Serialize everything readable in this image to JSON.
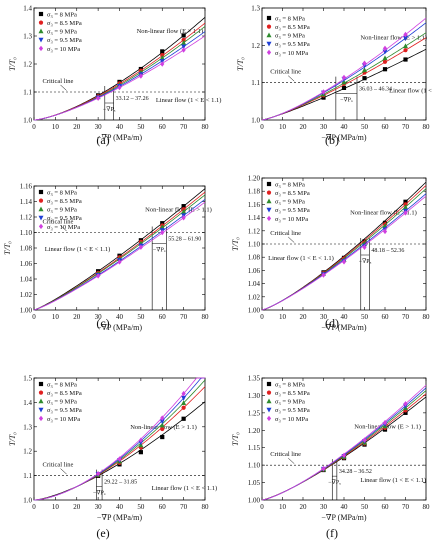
{
  "figure": {
    "captions": [
      "(a)",
      "(b)",
      "(c)",
      "(d)",
      "(e)",
      "(f)"
    ]
  },
  "chart_data": [
    {
      "type": "scatter",
      "panel": "(a)",
      "xlabel": "−∇P (MPa/m)",
      "ylabel": "T/T₀",
      "xlim": [
        0,
        80
      ],
      "ylim": [
        1.0,
        1.4
      ],
      "xticks": [
        0,
        10,
        20,
        30,
        40,
        50,
        60,
        70,
        80
      ],
      "yticks": [
        1.0,
        1.1,
        1.2,
        1.3,
        1.4
      ],
      "ytick_labels": [
        "1.0",
        "1.1",
        "1.2",
        "1.3",
        "1.4"
      ],
      "critical_value": 1.1,
      "critical_label": "Critical line",
      "critical_range": [
        33.12,
        37.26
      ],
      "range_label": "33.12 – 37.26",
      "grad_label": "−∇Pₓ",
      "regions": [
        {
          "text": "Non-linear flow (E > 1.1)",
          "x": 48,
          "y": 1.31
        },
        {
          "text": "Linear flow (1 < E < 1.1)",
          "x": 57,
          "y": 1.065
        }
      ],
      "x": [
        30,
        40,
        50,
        60,
        70
      ],
      "series": [
        {
          "name": "σ₃ = 8 MPa",
          "color": "#000000",
          "marker": "square",
          "values": [
            1.088,
            1.136,
            1.182,
            1.245,
            1.302
          ]
        },
        {
          "name": "σ₃ = 8.5 MPa",
          "color": "#e02020",
          "marker": "circle",
          "values": [
            1.085,
            1.131,
            1.176,
            1.232,
            1.286
          ]
        },
        {
          "name": "σ₃ = 9 MPa",
          "color": "#2e8b2e",
          "marker": "triangle-up",
          "values": [
            1.082,
            1.126,
            1.17,
            1.222,
            1.276
          ]
        },
        {
          "name": "σ₃ = 9.5 MPa",
          "color": "#1f3fd6",
          "marker": "triangle-down",
          "values": [
            1.08,
            1.121,
            1.163,
            1.21,
            1.262
          ]
        },
        {
          "name": "σ₃ = 10 MPa",
          "color": "#d040e0",
          "marker": "diamond",
          "values": [
            1.078,
            1.116,
            1.157,
            1.2,
            1.25
          ]
        }
      ]
    },
    {
      "type": "scatter",
      "panel": "(b)",
      "xlabel": "−∇P (MPa/m)",
      "ylabel": "T/T₀",
      "xlim": [
        0,
        80
      ],
      "ylim": [
        1.0,
        1.3
      ],
      "xticks": [
        0,
        10,
        20,
        30,
        40,
        50,
        60,
        70,
        80
      ],
      "yticks": [
        1.0,
        1.1,
        1.2,
        1.3
      ],
      "ytick_labels": [
        "1.0",
        "1.1",
        "1.2",
        "1.3"
      ],
      "critical_value": 1.1,
      "critical_label": "Critical line",
      "critical_range": [
        36.03,
        46.34
      ],
      "range_label": "36.03 – 46.34",
      "grad_label": "−∇Pₓ",
      "regions": [
        {
          "text": "Non-linear flow (E > 1.1)",
          "x": 48,
          "y": 1.215
        },
        {
          "text": "Linear flow (1 < E < 1.1)",
          "x": 62,
          "y": 1.073
        }
      ],
      "x": [
        30,
        40,
        50,
        60,
        70
      ],
      "series": [
        {
          "name": "σ₃ = 8 MPa",
          "color": "#000000",
          "marker": "square",
          "values": [
            1.06,
            1.086,
            1.112,
            1.136,
            1.162
          ]
        },
        {
          "name": "σ₃ = 8.5 MPa",
          "color": "#e02020",
          "marker": "circle",
          "values": [
            1.066,
            1.097,
            1.127,
            1.156,
            1.187
          ]
        },
        {
          "name": "σ₃ = 9 MPa",
          "color": "#2e8b2e",
          "marker": "triangle-up",
          "values": [
            1.069,
            1.101,
            1.134,
            1.166,
            1.198
          ]
        },
        {
          "name": "σ₃ = 9.5 MPa",
          "color": "#1f3fd6",
          "marker": "triangle-down",
          "values": [
            1.073,
            1.11,
            1.146,
            1.183,
            1.219
          ]
        },
        {
          "name": "σ₃ = 10 MPa",
          "color": "#d040e0",
          "marker": "diamond",
          "values": [
            1.075,
            1.114,
            1.152,
            1.192,
            1.229
          ]
        }
      ]
    },
    {
      "type": "scatter",
      "panel": "(c)",
      "xlabel": "−∇P (MPa/m)",
      "ylabel": "T/T₀",
      "xlim": [
        0,
        80
      ],
      "ylim": [
        1.0,
        1.16
      ],
      "xticks": [
        0,
        10,
        20,
        30,
        40,
        50,
        60,
        70,
        80
      ],
      "yticks": [
        1.0,
        1.02,
        1.04,
        1.06,
        1.08,
        1.1,
        1.12,
        1.14,
        1.16
      ],
      "ytick_labels": [
        "1.00",
        "1.02",
        "1.04",
        "1.06",
        "1.08",
        "1.10",
        "1.12",
        "1.14",
        "1.16"
      ],
      "critical_value": 1.1,
      "critical_label": "Critical line",
      "critical_range": [
        55.28,
        61.9
      ],
      "range_label": "55.28 – 61.90",
      "grad_label": "−∇Pₓ",
      "regions": [
        {
          "text": "Non-linear flow (E > 1.1)",
          "x": 52,
          "y": 1.127
        },
        {
          "text": "Linear flow (1 < E < 1.1)",
          "x": 5,
          "y": 1.076
        }
      ],
      "x": [
        30,
        40,
        50,
        60,
        70
      ],
      "series": [
        {
          "name": "σ₃ = 8 MPa",
          "color": "#000000",
          "marker": "square",
          "values": [
            1.05,
            1.07,
            1.09,
            1.112,
            1.134
          ]
        },
        {
          "name": "σ₃ = 8.5 MPa",
          "color": "#e02020",
          "marker": "circle",
          "values": [
            1.048,
            1.068,
            1.088,
            1.109,
            1.13
          ]
        },
        {
          "name": "σ₃ = 9 MPa",
          "color": "#2e8b2e",
          "marker": "triangle-up",
          "values": [
            1.047,
            1.066,
            1.086,
            1.107,
            1.127
          ]
        },
        {
          "name": "σ₃ = 9.5 MPa",
          "color": "#1f3fd6",
          "marker": "triangle-down",
          "values": [
            1.045,
            1.064,
            1.083,
            1.103,
            1.122
          ]
        },
        {
          "name": "σ₃ = 10 MPa",
          "color": "#d040e0",
          "marker": "diamond",
          "values": [
            1.044,
            1.062,
            1.081,
            1.1,
            1.119
          ]
        }
      ]
    },
    {
      "type": "scatter",
      "panel": "(d)",
      "xlabel": "−∇P (MPa/m)",
      "ylabel": "T/T₀",
      "xlim": [
        0,
        80
      ],
      "ylim": [
        1.0,
        1.2
      ],
      "xticks": [
        0,
        10,
        20,
        30,
        40,
        50,
        60,
        70,
        80
      ],
      "yticks": [
        1.0,
        1.02,
        1.04,
        1.06,
        1.08,
        1.1,
        1.12,
        1.14,
        1.16,
        1.18,
        1.2
      ],
      "ytick_labels": [
        "1.00",
        "1.02",
        "1.04",
        "1.06",
        "1.08",
        "1.10",
        "1.12",
        "1.14",
        "1.16",
        "1.18",
        "1.20"
      ],
      "critical_value": 1.1,
      "critical_label": "Critical line",
      "critical_range": [
        48.18,
        52.36
      ],
      "range_label": "48.18 – 52.36",
      "grad_label": "−∇Pₓ",
      "regions": [
        {
          "text": "Non-linear flow (E > 1.1)",
          "x": 43,
          "y": 1.145
        },
        {
          "text": "Linear flow (1 < E < 1.1)",
          "x": 3,
          "y": 1.076
        }
      ],
      "x": [
        30,
        40,
        50,
        60,
        70
      ],
      "series": [
        {
          "name": "σ₃ = 8 MPa",
          "color": "#000000",
          "marker": "square",
          "values": [
            1.057,
            1.079,
            1.104,
            1.132,
            1.164
          ]
        },
        {
          "name": "σ₃ = 8.5 MPa",
          "color": "#e02020",
          "marker": "circle",
          "values": [
            1.056,
            1.078,
            1.102,
            1.13,
            1.16
          ]
        },
        {
          "name": "σ₃ = 9 MPa",
          "color": "#2e8b2e",
          "marker": "triangle-up",
          "values": [
            1.055,
            1.076,
            1.1,
            1.127,
            1.156
          ]
        },
        {
          "name": "σ₃ = 9.5 MPa",
          "color": "#1f3fd6",
          "marker": "triangle-down",
          "values": [
            1.054,
            1.074,
            1.097,
            1.122,
            1.15
          ]
        },
        {
          "name": "σ₃ = 10 MPa",
          "color": "#d040e0",
          "marker": "diamond",
          "values": [
            1.053,
            1.073,
            1.095,
            1.119,
            1.147
          ]
        }
      ]
    },
    {
      "type": "scatter",
      "panel": "(e)",
      "xlabel": "−∇P (MPa/m)",
      "ylabel": "T/T₀",
      "xlim": [
        0,
        80
      ],
      "ylim": [
        1.0,
        1.5
      ],
      "xticks": [
        0,
        10,
        20,
        30,
        40,
        50,
        60,
        70,
        80
      ],
      "yticks": [
        1.0,
        1.1,
        1.2,
        1.3,
        1.4,
        1.5
      ],
      "ytick_labels": [
        "1.0",
        "1.1",
        "1.2",
        "1.3",
        "1.4",
        "1.5"
      ],
      "critical_value": 1.1,
      "critical_label": "Critical line",
      "critical_range": [
        29.22,
        31.85
      ],
      "range_label": "29.22 – 31.85",
      "grad_label": "−∇Pₓ",
      "regions": [
        {
          "text": "Non-linear flow (E > 1.1)",
          "x": 45,
          "y": 1.29
        },
        {
          "text": "Linear flow (1 < E < 1.1)",
          "x": 55,
          "y": 1.042
        }
      ],
      "x": [
        30,
        40,
        50,
        60,
        70
      ],
      "series": [
        {
          "name": "σ₃ = 8 MPa",
          "color": "#000000",
          "marker": "square",
          "values": [
            1.099,
            1.146,
            1.196,
            1.258,
            1.333
          ]
        },
        {
          "name": "σ₃ = 8.5 MPa",
          "color": "#e02020",
          "marker": "circle",
          "values": [
            1.102,
            1.152,
            1.215,
            1.291,
            1.378
          ]
        },
        {
          "name": "σ₃ = 9 MPa",
          "color": "#2e8b2e",
          "marker": "triangle-up",
          "values": [
            1.104,
            1.158,
            1.225,
            1.306,
            1.398
          ]
        },
        {
          "name": "σ₃ = 9.5 MPa",
          "color": "#1f3fd6",
          "marker": "triangle-down",
          "values": [
            1.106,
            1.163,
            1.236,
            1.322,
            1.418
          ]
        },
        {
          "name": "σ₃ = 10 MPa",
          "color": "#d040e0",
          "marker": "diamond",
          "values": [
            1.108,
            1.168,
            1.245,
            1.336,
            1.436
          ]
        }
      ]
    },
    {
      "type": "scatter",
      "panel": "(f)",
      "xlabel": "−∇P (MPa/m)",
      "ylabel": "T/T₀",
      "xlim": [
        0,
        80
      ],
      "ylim": [
        1.0,
        1.35
      ],
      "xticks": [
        0,
        10,
        20,
        30,
        40,
        50,
        60,
        70,
        80
      ],
      "yticks": [
        1.0,
        1.05,
        1.1,
        1.15,
        1.2,
        1.25,
        1.3,
        1.35
      ],
      "ytick_labels": [
        "1.00",
        "1.05",
        "1.10",
        "1.15",
        "1.20",
        "1.25",
        "1.30",
        "1.35"
      ],
      "critical_value": 1.1,
      "critical_label": "Critical line",
      "critical_range": [
        34.28,
        36.52
      ],
      "range_label": "34.28 – 36.52",
      "grad_label": "−∇Pₓ",
      "regions": [
        {
          "text": "Non-linear flow (E > 1.1)",
          "x": 45,
          "y": 1.205
        },
        {
          "text": "Linear flow (1 < E < 1.1)",
          "x": 48,
          "y": 1.052
        }
      ],
      "x": [
        30,
        40,
        50,
        60,
        70
      ],
      "series": [
        {
          "name": "σ₃ = 8 MPa",
          "color": "#000000",
          "marker": "square",
          "values": [
            1.086,
            1.12,
            1.159,
            1.202,
            1.25
          ]
        },
        {
          "name": "σ₃ = 8.5 MPa",
          "color": "#e02020",
          "marker": "circle",
          "values": [
            1.087,
            1.122,
            1.162,
            1.207,
            1.257
          ]
        },
        {
          "name": "σ₃ = 9 MPa",
          "color": "#2e8b2e",
          "marker": "triangle-up",
          "values": [
            1.088,
            1.124,
            1.165,
            1.212,
            1.264
          ]
        },
        {
          "name": "σ₃ = 9.5 MPa",
          "color": "#1f3fd6",
          "marker": "triangle-down",
          "values": [
            1.089,
            1.126,
            1.169,
            1.217,
            1.27
          ]
        },
        {
          "name": "σ₃ = 10 MPa",
          "color": "#d040e0",
          "marker": "diamond",
          "values": [
            1.09,
            1.128,
            1.172,
            1.222,
            1.276
          ]
        }
      ]
    }
  ]
}
